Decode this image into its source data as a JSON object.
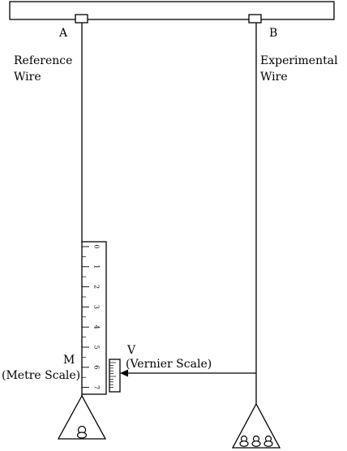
{
  "labels": {
    "a": "A",
    "b": "B",
    "ref_wire_1": "Reference",
    "ref_wire_2": "Wire",
    "exp_wire_1": "Experimental",
    "exp_wire_2": "Wire",
    "m": "M",
    "metre_scale": "(Metre Scale)",
    "v": "V",
    "vernier_scale": "(Vernier Scale)"
  },
  "scale_ticks": [
    "0",
    "1",
    "2",
    "3",
    "4",
    "5",
    "6",
    "7"
  ],
  "colors": {
    "line": "#000000",
    "background": "#ffffff"
  }
}
